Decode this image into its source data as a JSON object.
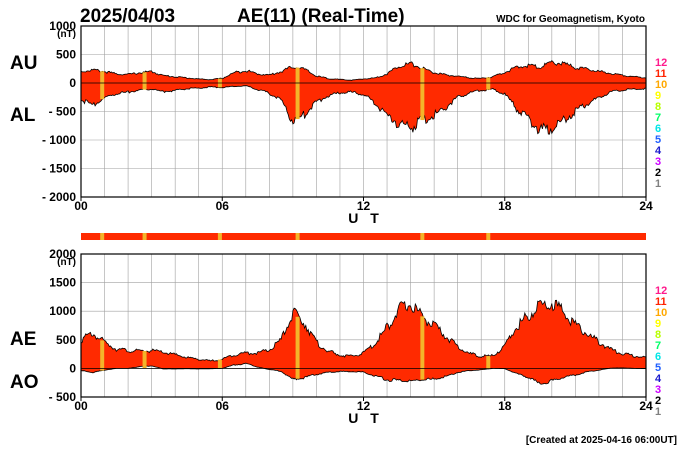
{
  "header": {
    "date": "2025/04/03",
    "title": "AE(11) (Real-Time)",
    "source": "WDC for Geomagnetism, Kyoto"
  },
  "footer": {
    "created": "[Created at 2025-04-16 06:00UT]"
  },
  "colors": {
    "fill": "#ff2a00",
    "highlight": "#f3b42a",
    "grid": "#a0a0a0",
    "key": [
      "#ff1a8c",
      "#ff2200",
      "#ffa800",
      "#ffff00",
      "#b8ff00",
      "#00ff66",
      "#00e6e6",
      "#1f5fff",
      "#1a1acc",
      "#cc00ff",
      "#000000",
      "#808080",
      "#d0d0d0"
    ]
  },
  "station_key": [
    "12",
    "11",
    "10",
    "9",
    "8",
    "7",
    "6",
    "5",
    "4",
    "3",
    "2",
    "1"
  ],
  "chart_data": [
    {
      "type": "area",
      "name_upper": "AU",
      "name_lower": "AL",
      "unit": "(nT)",
      "xlabel": "U T",
      "xlim": [
        0,
        24
      ],
      "xticks": [
        "00",
        "06",
        "12",
        "18",
        "24"
      ],
      "ylim": [
        -2000,
        1000
      ],
      "yticks": [
        "1000",
        "500",
        "0",
        "- 500",
        "- 1000",
        "- 1500",
        "- 2000"
      ],
      "x": [
        0,
        0.5,
        1,
        1.5,
        2,
        2.5,
        3,
        3.5,
        4,
        4.5,
        5,
        5.5,
        6,
        6.5,
        7,
        7.5,
        8,
        8.5,
        9,
        9.5,
        10,
        10.5,
        11,
        11.5,
        12,
        12.5,
        13,
        13.5,
        14,
        14.5,
        15,
        15.5,
        16,
        16.5,
        17,
        17.5,
        18,
        18.5,
        19,
        19.5,
        20,
        20.5,
        21,
        21.5,
        22,
        22.5,
        23,
        23.5,
        24
      ],
      "series": [
        {
          "name": "AU",
          "values": [
            200,
            230,
            200,
            160,
            150,
            180,
            200,
            130,
            110,
            90,
            70,
            60,
            80,
            180,
            220,
            160,
            140,
            200,
            290,
            240,
            120,
            80,
            60,
            50,
            70,
            90,
            160,
            300,
            340,
            260,
            180,
            140,
            120,
            90,
            80,
            110,
            190,
            270,
            310,
            280,
            360,
            340,
            270,
            240,
            200,
            170,
            140,
            110,
            90
          ]
        },
        {
          "name": "AL",
          "values": [
            -300,
            -380,
            -260,
            -180,
            -160,
            -120,
            -110,
            -150,
            -130,
            -100,
            -90,
            -70,
            -80,
            -60,
            -50,
            -110,
            -180,
            -300,
            -680,
            -560,
            -330,
            -220,
            -170,
            -160,
            -200,
            -350,
            -560,
            -720,
            -790,
            -650,
            -560,
            -420,
            -260,
            -170,
            -130,
            -110,
            -200,
            -450,
            -620,
            -830,
            -790,
            -640,
            -500,
            -360,
            -260,
            -160,
            -120,
            -110,
            -100
          ]
        }
      ],
      "highlight_hours": [
        0.9,
        2.7,
        5.9,
        9.2,
        14.5,
        17.3
      ]
    },
    {
      "type": "area",
      "name_upper": "AE",
      "name_lower": "AO",
      "unit": "(nT)",
      "xlabel": "U T",
      "xlim": [
        0,
        24
      ],
      "xticks": [
        "00",
        "06",
        "12",
        "18",
        "24"
      ],
      "ylim": [
        -500,
        2000
      ],
      "yticks": [
        "2000",
        "1500",
        "1000",
        "500",
        "0",
        "- 500"
      ],
      "x": [
        0,
        0.5,
        1,
        1.5,
        2,
        2.5,
        3,
        3.5,
        4,
        4.5,
        5,
        5.5,
        6,
        6.5,
        7,
        7.5,
        8,
        8.5,
        9,
        9.5,
        10,
        10.5,
        11,
        11.5,
        12,
        12.5,
        13,
        13.5,
        14,
        14.5,
        15,
        15.5,
        16,
        16.5,
        17,
        17.5,
        18,
        18.5,
        19,
        19.5,
        20,
        20.5,
        21,
        21.5,
        22,
        22.5,
        23,
        23.5,
        24
      ],
      "series": [
        {
          "name": "AE",
          "values": [
            500,
            610,
            460,
            340,
            310,
            300,
            310,
            280,
            240,
            190,
            160,
            130,
            160,
            240,
            270,
            270,
            320,
            500,
            970,
            800,
            450,
            300,
            230,
            210,
            270,
            440,
            720,
            1020,
            1130,
            910,
            740,
            560,
            380,
            260,
            210,
            220,
            390,
            720,
            930,
            1110,
            1150,
            980,
            770,
            600,
            460,
            330,
            260,
            220,
            190
          ]
        },
        {
          "name": "AO",
          "values": [
            -40,
            -70,
            -30,
            0,
            0,
            30,
            45,
            -10,
            -10,
            -5,
            -10,
            -5,
            0,
            60,
            85,
            25,
            -20,
            -50,
            -195,
            -160,
            -105,
            -70,
            -55,
            -55,
            -65,
            -130,
            -200,
            -210,
            -225,
            -195,
            -190,
            -140,
            -70,
            -40,
            -25,
            0,
            -5,
            -90,
            -155,
            -275,
            -215,
            -150,
            -115,
            -60,
            -30,
            5,
            10,
            0,
            -5
          ]
        }
      ],
      "highlight_hours": [
        0.9,
        2.7,
        5.9,
        9.2,
        14.5,
        17.3
      ]
    }
  ]
}
